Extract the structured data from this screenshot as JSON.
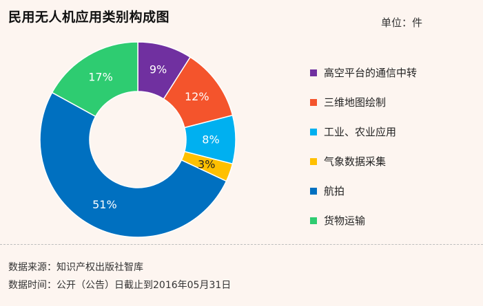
{
  "header": {
    "title": "民用无人机应用类别构成图",
    "unit": "单位：件"
  },
  "footer": {
    "source": "数据来源：知识产权出版社智库",
    "time": "数据时间：公开（公告）日截止到2016年05月31日"
  },
  "chart_data": {
    "type": "pie",
    "style": "donut",
    "title": "民用无人机应用类别构成图",
    "legend_position": "right",
    "categories": [
      "高空平台的通信中转",
      "三维地图绘制",
      "工业、农业应用",
      "气象数据采集",
      "航拍",
      "货物运输"
    ],
    "values": [
      9,
      12,
      8,
      3,
      51,
      17
    ],
    "labels": [
      "9%",
      "12%",
      "8%",
      "3%",
      "51%",
      "17%"
    ],
    "colors": [
      "#7030a0",
      "#f4542c",
      "#00b0f0",
      "#ffc000",
      "#0070c0",
      "#2ecc71"
    ],
    "label_colors": [
      "#ffffff",
      "#ffffff",
      "#ffffff",
      "#222222",
      "#ffffff",
      "#ffffff"
    ]
  }
}
